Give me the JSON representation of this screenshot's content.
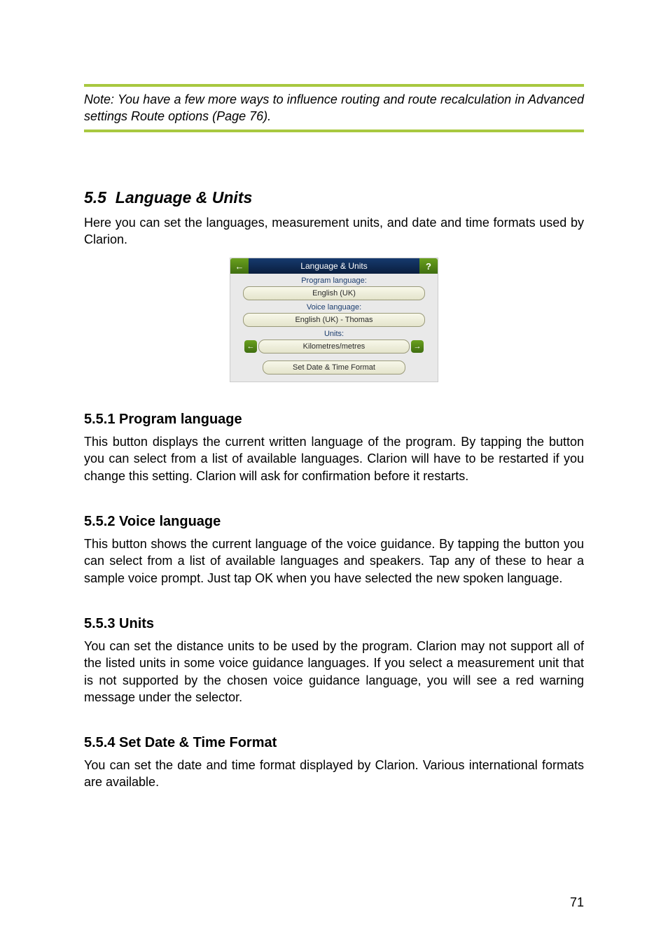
{
  "note": {
    "text": "Note: You have a few more ways to influence routing and route recalculation in Advanced settings Route options (Page 76)."
  },
  "section": {
    "number": "5.5",
    "title": "Language & Units",
    "intro": "Here you can set the languages, measurement units, and date and time formats used by Clarion."
  },
  "screenshot": {
    "back_glyph": "←",
    "help_glyph": "?",
    "title": "Language & Units",
    "label_program": "Program language:",
    "value_program": "English (UK)",
    "label_voice": "Voice language:",
    "value_voice": "English (UK) - Thomas",
    "label_units": "Units:",
    "value_units": "Kilometres/metres",
    "arrow_left": "←",
    "arrow_right": "→",
    "btn_datetime": "Set Date & Time Format"
  },
  "sub1": {
    "heading": "5.5.1  Program language",
    "body": "This button displays the current written language of the program. By tapping the button you can select from a list of available languages. Clarion will have to be restarted if you change this setting. Clarion will ask for confirmation before it restarts."
  },
  "sub2": {
    "heading": "5.5.2  Voice language",
    "body": "This button shows the current language of the voice guidance. By tapping the button you can select from a list of available languages and speakers. Tap any of these to hear a sample voice prompt. Just tap OK when you have selected the new spoken language."
  },
  "sub3": {
    "heading": "5.5.3  Units",
    "body": "You can set the distance units to be used by the program. Clarion may not support all of the listed units in some voice guidance languages. If you select a measurement unit that is not supported by the chosen voice guidance language, you will see a red warning message under the selector."
  },
  "sub4": {
    "heading": "5.5.4  Set Date & Time Format",
    "body": "You can set the date and time format displayed by Clarion. Various international formats are available."
  },
  "page_number": "71"
}
